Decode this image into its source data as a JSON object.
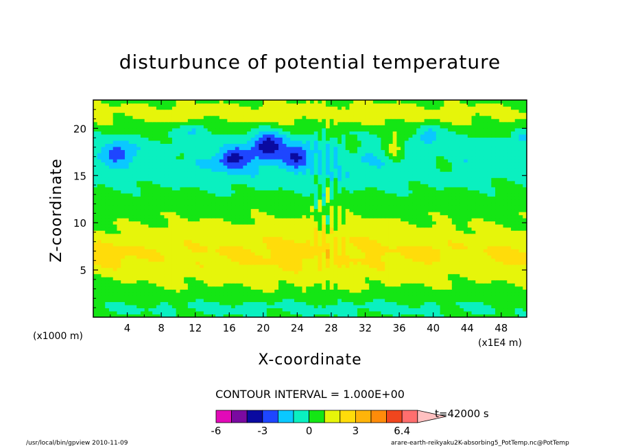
{
  "chart_data": {
    "type": "heatmap",
    "title": "disturbunce of potential temperature",
    "xlabel": "X-coordinate",
    "ylabel": "Z-coordinate",
    "x_unit_left": "(x1000 m)",
    "x_unit_right": "(x1E4 m)",
    "x_ticks": [
      "4",
      "8",
      "12",
      "16",
      "20",
      "24",
      "28",
      "32",
      "36",
      "40",
      "44",
      "48"
    ],
    "y_ticks": [
      "5",
      "10",
      "15",
      "20"
    ],
    "xlim": [
      0,
      51
    ],
    "ylim": [
      0,
      23
    ],
    "contour_interval": "CONTOUR INTERVAL = 1.000E+00",
    "time_label": "t=42000 s",
    "colorbar": {
      "colors": [
        "#e20ab8",
        "#7a0aa0",
        "#0a0aa0",
        "#1e46ff",
        "#0ac8ff",
        "#0af0c0",
        "#14e614",
        "#e6f50a",
        "#ffdc0a",
        "#ffb40a",
        "#ff8c0a",
        "#f0461e",
        "#ff6e6e",
        "#ffc0c0"
      ],
      "labels": [
        "-6",
        "-3",
        "0",
        "3",
        "6.4"
      ],
      "label_positions": [
        0,
        3,
        6,
        9,
        12
      ]
    },
    "footer_left": "/usr/local/bin/gpview  2010-11-09",
    "footer_right": "arare-earth-reikyaku2K-absorbing5_PotTemp.nc@PotTemp"
  }
}
